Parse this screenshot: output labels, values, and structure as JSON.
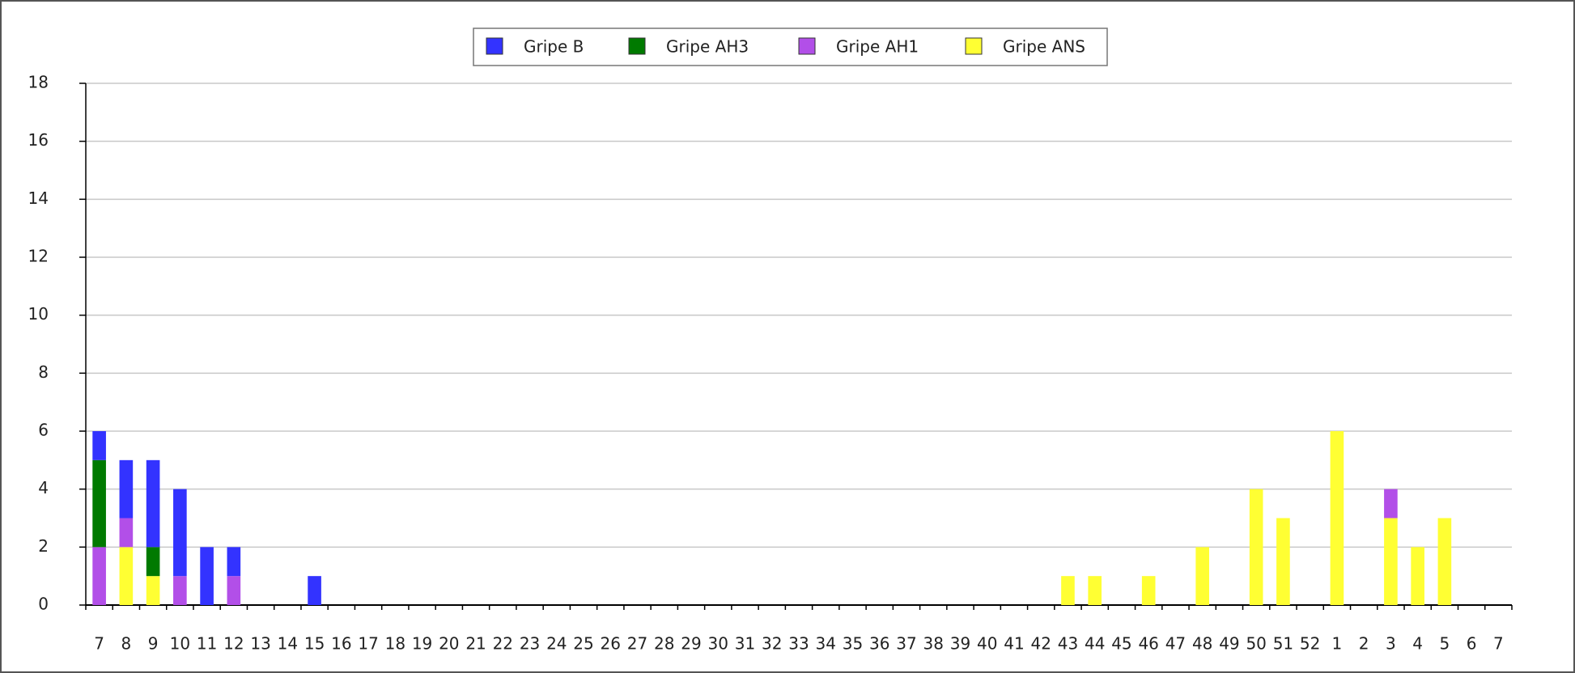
{
  "chart_data": {
    "type": "stacked_bar",
    "categories": [
      "7",
      "8",
      "9",
      "10",
      "11",
      "12",
      "13",
      "14",
      "15",
      "16",
      "17",
      "18",
      "19",
      "20",
      "21",
      "22",
      "23",
      "24",
      "25",
      "26",
      "27",
      "28",
      "29",
      "30",
      "31",
      "32",
      "33",
      "34",
      "35",
      "36",
      "37",
      "38",
      "39",
      "40",
      "41",
      "42",
      "43",
      "44",
      "45",
      "46",
      "47",
      "48",
      "49",
      "50",
      "51",
      "52",
      "1",
      "2",
      "3",
      "4",
      "5",
      "6",
      "7"
    ],
    "series": [
      {
        "name": "Gripe B",
        "color": "#3333ff",
        "values": [
          1,
          2,
          3,
          3,
          2,
          1,
          0,
          0,
          1,
          0,
          0,
          0,
          0,
          0,
          0,
          0,
          0,
          0,
          0,
          0,
          0,
          0,
          0,
          0,
          0,
          0,
          0,
          0,
          0,
          0,
          0,
          0,
          0,
          0,
          0,
          0,
          0,
          0,
          0,
          0,
          0,
          0,
          0,
          0,
          0,
          0,
          0,
          0,
          0,
          0,
          0,
          0,
          0
        ]
      },
      {
        "name": "Gripe AH3",
        "color": "#007a00",
        "values": [
          3,
          0,
          1,
          0,
          0,
          0,
          0,
          0,
          0,
          0,
          0,
          0,
          0,
          0,
          0,
          0,
          0,
          0,
          0,
          0,
          0,
          0,
          0,
          0,
          0,
          0,
          0,
          0,
          0,
          0,
          0,
          0,
          0,
          0,
          0,
          0,
          0,
          0,
          0,
          0,
          0,
          0,
          0,
          0,
          0,
          0,
          0,
          0,
          0,
          0,
          0,
          0,
          0
        ]
      },
      {
        "name": "Gripe AH1",
        "color": "#b24fe8",
        "values": [
          2,
          1,
          0,
          1,
          0,
          1,
          0,
          0,
          0,
          0,
          0,
          0,
          0,
          0,
          0,
          0,
          0,
          0,
          0,
          0,
          0,
          0,
          0,
          0,
          0,
          0,
          0,
          0,
          0,
          0,
          0,
          0,
          0,
          0,
          0,
          0,
          0,
          0,
          0,
          0,
          0,
          0,
          0,
          0,
          0,
          0,
          0,
          0,
          1,
          0,
          0,
          0,
          0
        ]
      },
      {
        "name": "Gripe ANS",
        "color": "#ffff33",
        "values": [
          0,
          2,
          1,
          0,
          0,
          0,
          0,
          0,
          0,
          0,
          0,
          0,
          0,
          0,
          0,
          0,
          0,
          0,
          0,
          0,
          0,
          0,
          0,
          0,
          0,
          0,
          0,
          0,
          0,
          0,
          0,
          0,
          0,
          0,
          0,
          0,
          1,
          1,
          0,
          1,
          0,
          2,
          0,
          4,
          3,
          0,
          6,
          0,
          3,
          2,
          3,
          0,
          0
        ]
      }
    ],
    "ylim": [
      0,
      18
    ],
    "yticks": [
      0,
      2,
      4,
      6,
      8,
      10,
      12,
      14,
      16,
      18
    ],
    "grid": true,
    "legend": "top"
  }
}
